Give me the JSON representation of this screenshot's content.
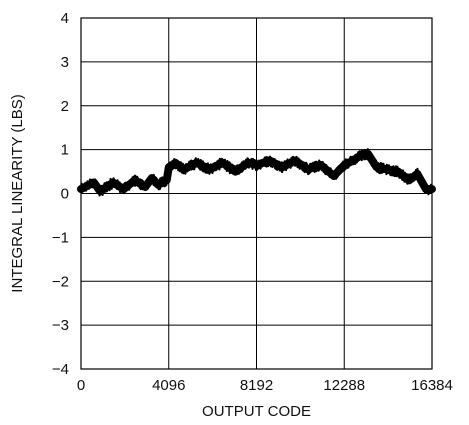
{
  "chart_data": {
    "type": "line",
    "xlabel": "OUTPUT CODE",
    "ylabel": "INTEGRAL LINEARITY (LBS)",
    "xlim": [
      0,
      16384
    ],
    "ylim": [
      -4,
      4
    ],
    "x_ticks": [
      0,
      4096,
      8192,
      12288,
      16384
    ],
    "x_tick_labels": [
      "0",
      "4096",
      "8192",
      "12288",
      "16384"
    ],
    "y_ticks": [
      4,
      3,
      2,
      1,
      0,
      -1,
      -2,
      -3,
      -4
    ],
    "y_tick_labels": [
      "4",
      "3",
      "2",
      "1",
      "0",
      "−1",
      "−2",
      "−3",
      "−4"
    ],
    "grid": true,
    "line_color": "#000000",
    "noise_band": 0.12,
    "series": [
      {
        "x": [
          0,
          600,
          900,
          1500,
          2000,
          2500,
          3000,
          3300,
          3600,
          4000,
          4096,
          4400,
          4800,
          5400,
          6000,
          6600,
          7200,
          7800,
          8192,
          8800,
          9400,
          10000,
          10600,
          11200,
          11800,
          12288,
          12700,
          13000,
          13400,
          13800,
          14300,
          14800,
          15300,
          15700,
          16100,
          16384
        ],
        "y": [
          0.1,
          0.25,
          0.05,
          0.25,
          0.1,
          0.3,
          0.15,
          0.35,
          0.2,
          0.3,
          0.6,
          0.7,
          0.55,
          0.7,
          0.55,
          0.7,
          0.5,
          0.7,
          0.65,
          0.75,
          0.6,
          0.75,
          0.55,
          0.65,
          0.4,
          0.65,
          0.75,
          0.85,
          0.9,
          0.6,
          0.55,
          0.5,
          0.3,
          0.45,
          0.1,
          0.1
        ]
      }
    ]
  }
}
